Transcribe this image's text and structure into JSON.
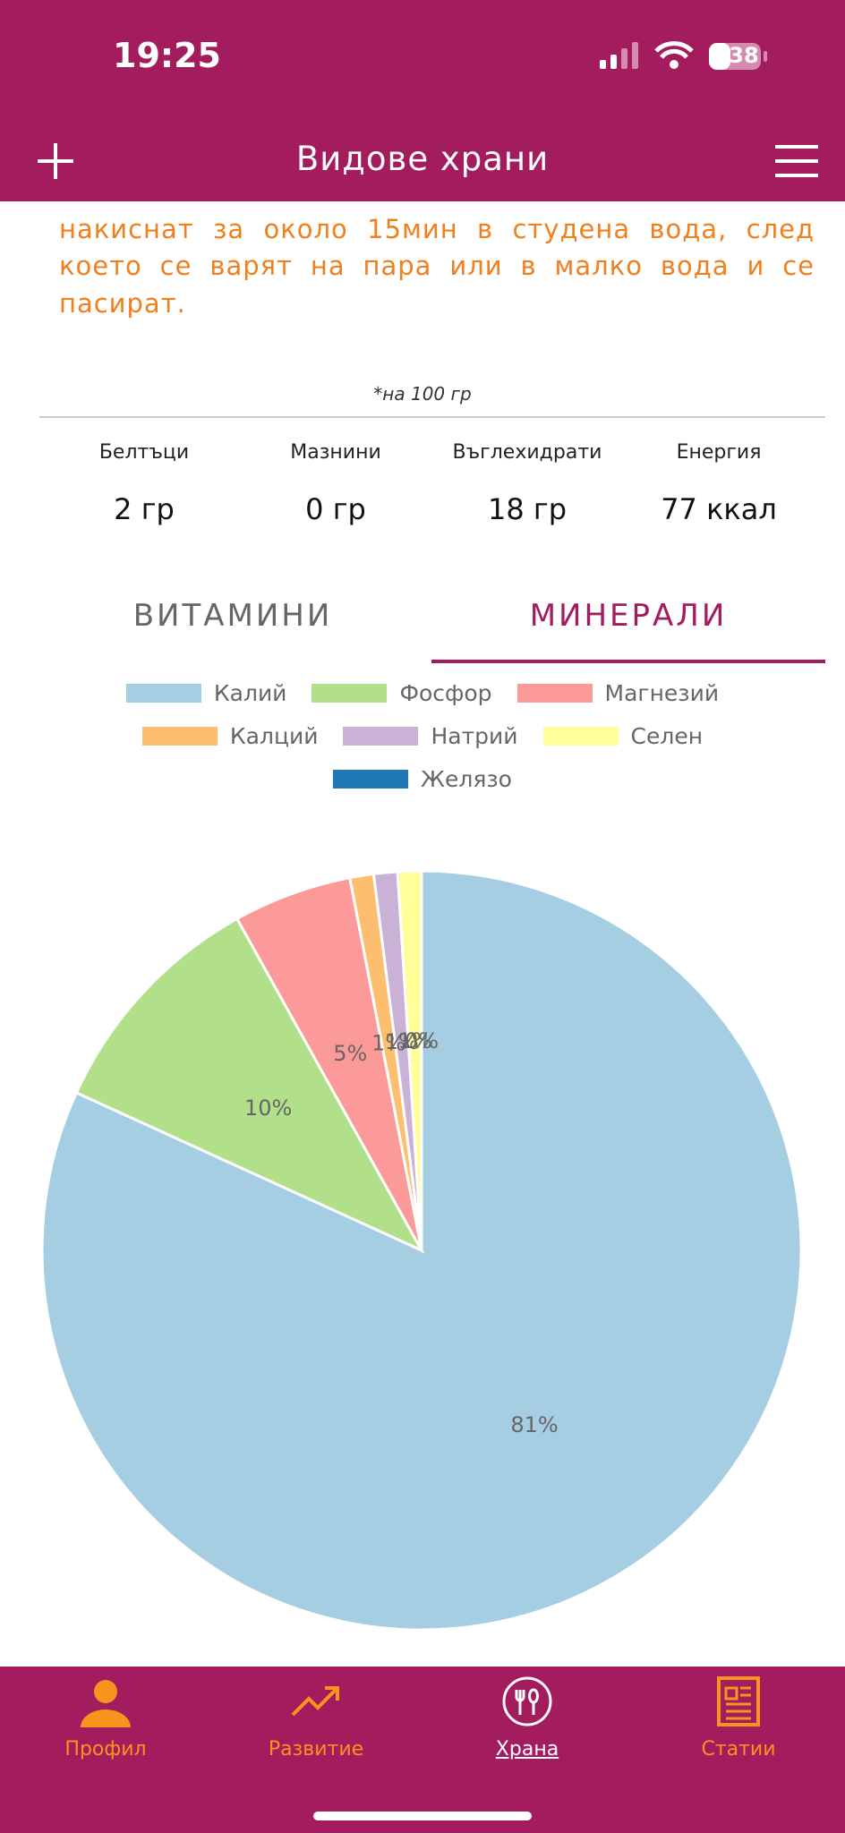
{
  "status_bar": {
    "time": "19:25",
    "battery": "38"
  },
  "header": {
    "title": "Видове храни"
  },
  "description": [
    "накиснат за около 15мин в студена вода, след",
    "което се варят на пара или в малко вода и се",
    "пасират."
  ],
  "nutrition": {
    "note": "*на 100 гр",
    "items": [
      {
        "label": "Белтъци",
        "value": "2 гр"
      },
      {
        "label": "Мазнини",
        "value": "0 гр"
      },
      {
        "label": "Въглехидрати",
        "value": "18 гр"
      },
      {
        "label": "Енергия",
        "value": "77 ккал"
      }
    ]
  },
  "tabs": [
    "ВИТАМИНИ",
    "МИНЕРАЛИ"
  ],
  "chart_data": {
    "type": "pie",
    "categories": [
      "Калий",
      "Фосфор",
      "Магнезий",
      "Калций",
      "Натрий",
      "Селен",
      "Желязо"
    ],
    "values": [
      81,
      10,
      5,
      1,
      1,
      1,
      0
    ],
    "value_labels": [
      "81%",
      "10%",
      "5%",
      "1%",
      "1%",
      "1%",
      "0%"
    ],
    "colors": [
      "#a6cee3",
      "#b2df8a",
      "#fb9a99",
      "#fdbf6f",
      "#cab2d6",
      "#ffff99",
      "#1f78b4"
    ]
  },
  "nav": [
    "Профил",
    "Развитие",
    "Храна",
    "Статии"
  ]
}
